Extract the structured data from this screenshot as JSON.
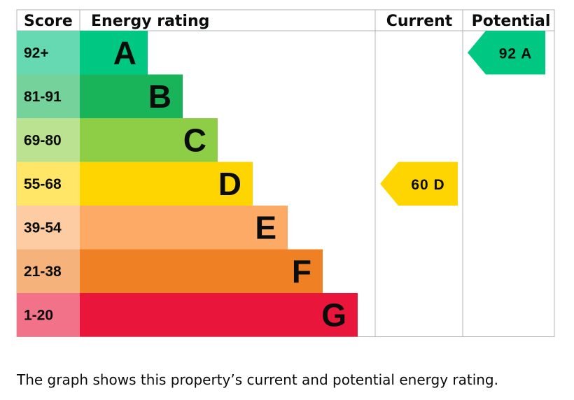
{
  "chart_data": {
    "type": "bar",
    "headers": {
      "score": "Score",
      "rating": "Energy rating",
      "current": "Current",
      "potential": "Potential"
    },
    "bands": [
      {
        "letter": "A",
        "score": "92+",
        "color": "#00c781",
        "score_bg": "#66d9b2"
      },
      {
        "letter": "B",
        "score": "81-91",
        "color": "#19b459",
        "score_bg": "#75d29b"
      },
      {
        "letter": "C",
        "score": "69-80",
        "color": "#8dce46",
        "score_bg": "#bbe290"
      },
      {
        "letter": "D",
        "score": "55-68",
        "color": "#ffd500",
        "score_bg": "#ffe666"
      },
      {
        "letter": "E",
        "score": "39-54",
        "color": "#fcaa65",
        "score_bg": "#fdcca3"
      },
      {
        "letter": "F",
        "score": "21-38",
        "color": "#ef8023",
        "score_bg": "#f5b37b"
      },
      {
        "letter": "G",
        "score": "1-20",
        "color": "#e9153b",
        "score_bg": "#f27389"
      }
    ],
    "current": {
      "score": 60,
      "band": "D",
      "label": "60  D"
    },
    "potential": {
      "score": 92,
      "band": "A",
      "label": "92  A"
    }
  },
  "caption": "The graph shows this property’s current and potential energy rating."
}
